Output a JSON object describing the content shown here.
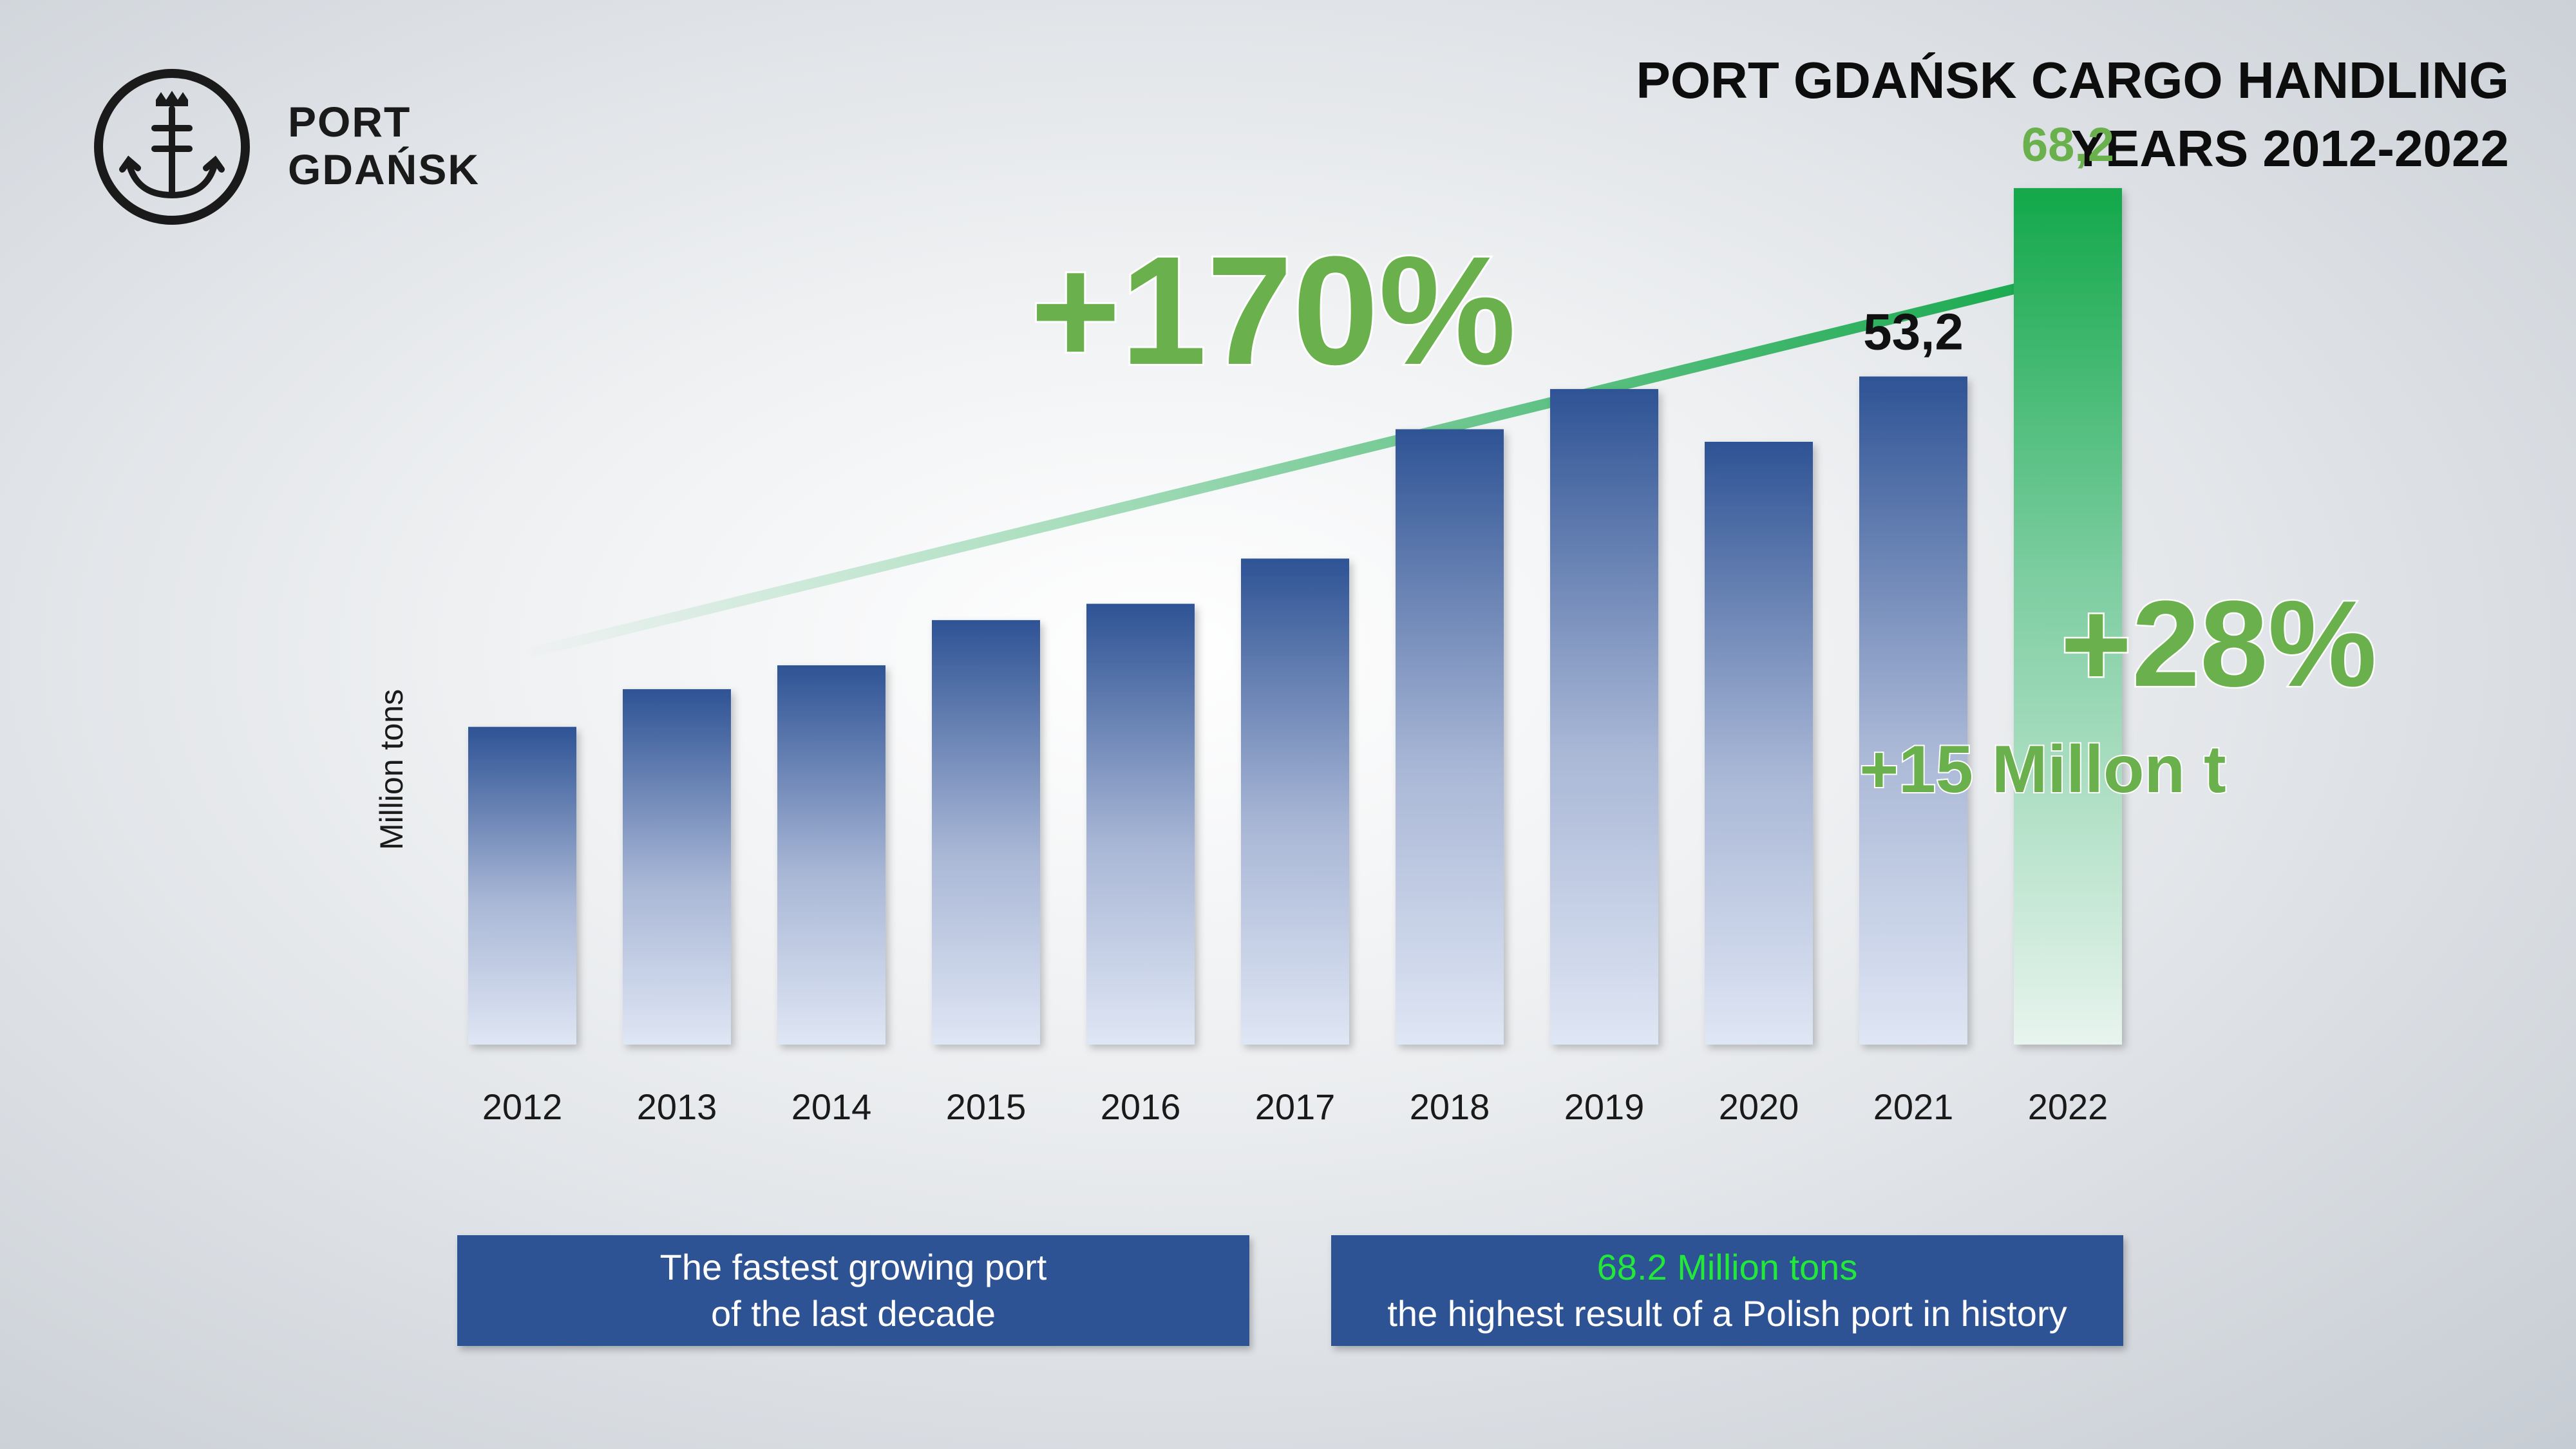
{
  "logo": {
    "line1": "PORT",
    "line2": "GDAŃSK"
  },
  "title": {
    "line1": "PORT GDAŃSK CARGO HANDLING",
    "line2": "YEARS 2012-2022"
  },
  "chart_data": {
    "type": "bar",
    "categories": [
      "2012",
      "2013",
      "2014",
      "2015",
      "2016",
      "2017",
      "2018",
      "2019",
      "2020",
      "2021",
      "2022"
    ],
    "values": [
      25.3,
      28.3,
      30.2,
      33.8,
      35.1,
      38.7,
      49.0,
      52.2,
      48.0,
      53.2,
      68.2
    ],
    "data_labels": {
      "2021": "53,2",
      "2022": "68,2"
    },
    "ylabel": "Million tons",
    "ylim": [
      0,
      70
    ],
    "highlight_category": "2022",
    "annotations": {
      "growth_decade": "+170%",
      "growth_year": "+28%",
      "growth_year_abs": "+15 Millon t"
    },
    "colors": {
      "bar_top": "#2e5395",
      "bar_bottom": "#dfe6f4",
      "highlight_top": "#13a84a",
      "highlight_bottom": "#e8f4ee",
      "arrow": "#13a84a",
      "accent_text": "#6ab04c"
    }
  },
  "footer": {
    "left": {
      "line1": "The fastest growing port",
      "line2": "of the last decade"
    },
    "right": {
      "line1": "68.2 Million tons",
      "line2": "the highest result of a Polish port in history"
    }
  }
}
